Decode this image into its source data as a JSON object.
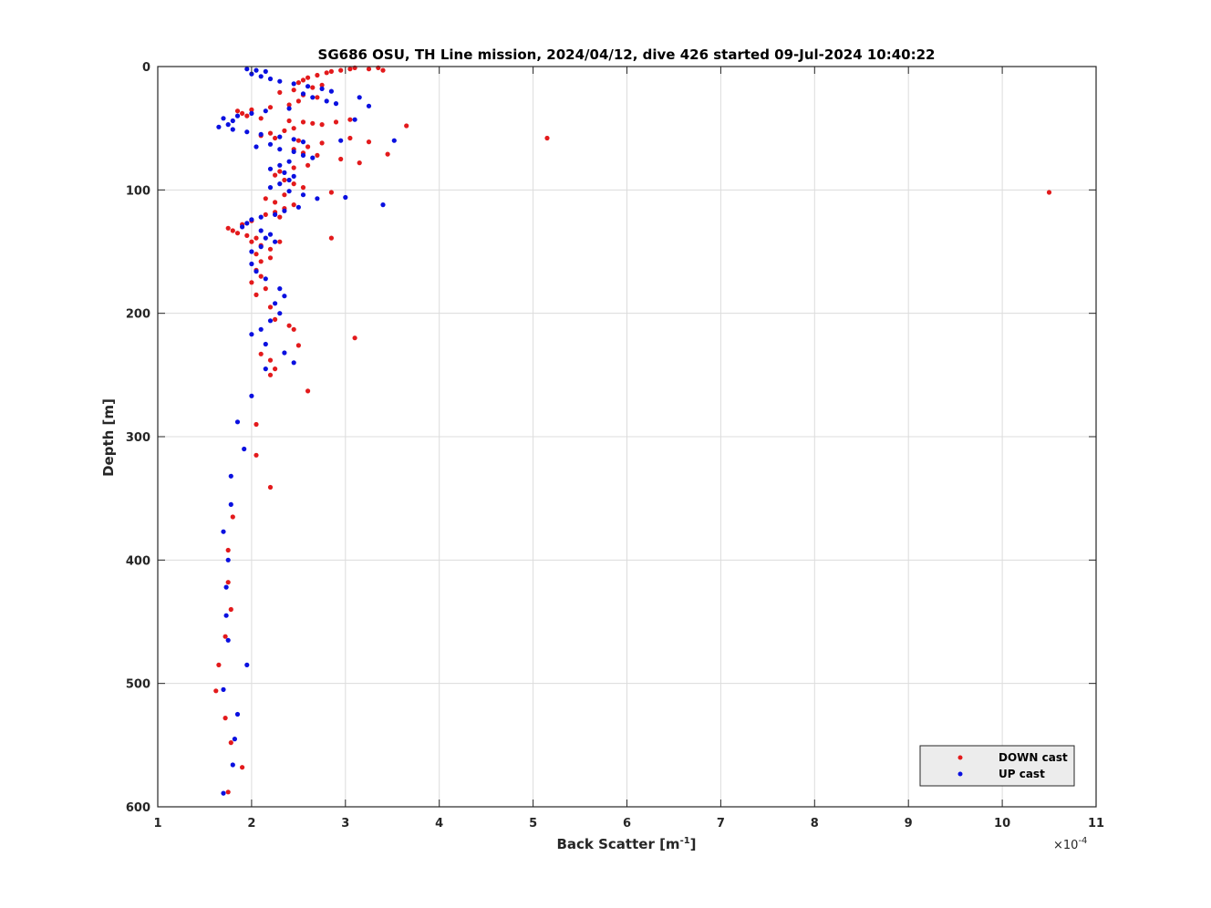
{
  "chart_data": {
    "type": "scatter",
    "title": "SG686 OSU, TH Line mission, 2024/04/12, dive 426 started 09-Jul-2024 10:40:22",
    "xlabel_base": "Back Scatter [m",
    "xlabel_sup": "-1",
    "xlabel_end": "]",
    "ylabel": "Depth [m]",
    "x_exponent_prefix": "×10",
    "x_exponent_sup": "-4",
    "xlim": [
      1,
      11
    ],
    "ylim": [
      0,
      600
    ],
    "y_reversed": true,
    "x_ticks": [
      1,
      2,
      3,
      4,
      5,
      6,
      7,
      8,
      9,
      10,
      11
    ],
    "y_ticks": [
      0,
      100,
      200,
      300,
      400,
      500,
      600
    ],
    "x_tick_labels": [
      "1",
      "2",
      "3",
      "4",
      "5",
      "6",
      "7",
      "8",
      "9",
      "10",
      "11"
    ],
    "y_tick_labels": [
      "0",
      "100",
      "200",
      "300",
      "400",
      "500",
      "600"
    ],
    "grid": true,
    "legend_position": "bottom-right",
    "series": [
      {
        "name": "DOWN cast",
        "color": "#e31a1c",
        "points": [
          [
            3.05,
            2
          ],
          [
            3.1,
            1
          ],
          [
            3.25,
            2
          ],
          [
            3.35,
            1
          ],
          [
            3.4,
            3
          ],
          [
            2.95,
            3
          ],
          [
            2.85,
            4
          ],
          [
            2.8,
            5
          ],
          [
            2.7,
            7
          ],
          [
            2.6,
            9
          ],
          [
            2.55,
            11
          ],
          [
            2.5,
            13
          ],
          [
            2.75,
            15
          ],
          [
            2.65,
            17
          ],
          [
            2.45,
            19
          ],
          [
            2.3,
            21
          ],
          [
            2.55,
            23
          ],
          [
            2.7,
            25
          ],
          [
            2.5,
            28
          ],
          [
            2.4,
            31
          ],
          [
            2.2,
            33
          ],
          [
            2.0,
            35
          ],
          [
            1.85,
            36
          ],
          [
            1.9,
            38
          ],
          [
            1.95,
            40
          ],
          [
            2.1,
            42
          ],
          [
            2.4,
            44
          ],
          [
            2.55,
            45
          ],
          [
            2.65,
            46
          ],
          [
            2.75,
            47
          ],
          [
            2.9,
            45
          ],
          [
            3.05,
            43
          ],
          [
            3.65,
            48
          ],
          [
            2.45,
            50
          ],
          [
            2.35,
            52
          ],
          [
            2.2,
            54
          ],
          [
            2.1,
            56
          ],
          [
            2.25,
            58
          ],
          [
            2.5,
            60
          ],
          [
            2.75,
            62
          ],
          [
            3.05,
            58
          ],
          [
            3.25,
            61
          ],
          [
            2.6,
            65
          ],
          [
            2.45,
            67
          ],
          [
            2.55,
            70
          ],
          [
            2.7,
            72
          ],
          [
            2.95,
            75
          ],
          [
            3.45,
            71
          ],
          [
            3.15,
            78
          ],
          [
            2.6,
            80
          ],
          [
            2.45,
            82
          ],
          [
            2.3,
            85
          ],
          [
            2.25,
            88
          ],
          [
            2.35,
            92
          ],
          [
            2.45,
            95
          ],
          [
            2.55,
            98
          ],
          [
            2.85,
            102
          ],
          [
            2.35,
            104
          ],
          [
            2.15,
            107
          ],
          [
            2.25,
            110
          ],
          [
            2.45,
            112
          ],
          [
            2.35,
            115
          ],
          [
            2.25,
            118
          ],
          [
            2.15,
            120
          ],
          [
            2.3,
            122
          ],
          [
            2.0,
            125
          ],
          [
            1.9,
            128
          ],
          [
            1.75,
            131
          ],
          [
            1.8,
            133
          ],
          [
            1.85,
            135
          ],
          [
            1.95,
            137
          ],
          [
            2.05,
            139
          ],
          [
            2.0,
            142
          ],
          [
            2.1,
            145
          ],
          [
            2.3,
            142
          ],
          [
            2.2,
            148
          ],
          [
            2.05,
            152
          ],
          [
            2.2,
            155
          ],
          [
            2.1,
            158
          ],
          [
            2.05,
            165
          ],
          [
            2.1,
            170
          ],
          [
            2.0,
            175
          ],
          [
            2.15,
            180
          ],
          [
            2.05,
            185
          ],
          [
            2.2,
            195
          ],
          [
            2.25,
            205
          ],
          [
            2.4,
            210
          ],
          [
            2.45,
            213
          ],
          [
            2.5,
            226
          ],
          [
            2.1,
            233
          ],
          [
            2.2,
            238
          ],
          [
            2.25,
            245
          ],
          [
            2.2,
            250
          ],
          [
            2.6,
            263
          ],
          [
            3.1,
            220
          ],
          [
            2.85,
            139
          ],
          [
            5.15,
            58
          ],
          [
            10.5,
            102
          ],
          [
            2.05,
            290
          ],
          [
            2.05,
            315
          ],
          [
            2.2,
            341
          ],
          [
            1.8,
            365
          ],
          [
            1.75,
            392
          ],
          [
            1.75,
            418
          ],
          [
            1.78,
            440
          ],
          [
            1.72,
            462
          ],
          [
            1.65,
            485
          ],
          [
            1.62,
            506
          ],
          [
            1.72,
            528
          ],
          [
            1.78,
            548
          ],
          [
            1.9,
            568
          ],
          [
            1.75,
            588
          ]
        ]
      },
      {
        "name": "UP cast",
        "color": "#0a10e0",
        "points": [
          [
            1.95,
            2
          ],
          [
            2.05,
            3
          ],
          [
            2.15,
            4
          ],
          [
            2.0,
            6
          ],
          [
            2.1,
            8
          ],
          [
            2.2,
            10
          ],
          [
            2.3,
            12
          ],
          [
            2.45,
            14
          ],
          [
            2.6,
            16
          ],
          [
            2.75,
            18
          ],
          [
            2.85,
            20
          ],
          [
            2.55,
            22
          ],
          [
            2.65,
            25
          ],
          [
            2.8,
            28
          ],
          [
            2.9,
            30
          ],
          [
            3.15,
            25
          ],
          [
            3.25,
            32
          ],
          [
            2.4,
            34
          ],
          [
            2.15,
            36
          ],
          [
            2.0,
            38
          ],
          [
            1.85,
            40
          ],
          [
            1.7,
            42
          ],
          [
            1.8,
            44
          ],
          [
            1.75,
            47
          ],
          [
            1.65,
            49
          ],
          [
            1.8,
            51
          ],
          [
            1.95,
            53
          ],
          [
            2.1,
            55
          ],
          [
            2.3,
            57
          ],
          [
            2.45,
            59
          ],
          [
            2.55,
            61
          ],
          [
            2.2,
            63
          ],
          [
            2.05,
            65
          ],
          [
            2.3,
            67
          ],
          [
            2.45,
            69
          ],
          [
            2.55,
            72
          ],
          [
            2.65,
            74
          ],
          [
            2.4,
            77
          ],
          [
            2.3,
            80
          ],
          [
            2.2,
            83
          ],
          [
            2.35,
            86
          ],
          [
            2.45,
            89
          ],
          [
            2.4,
            92
          ],
          [
            2.3,
            95
          ],
          [
            2.2,
            98
          ],
          [
            2.4,
            101
          ],
          [
            2.55,
            104
          ],
          [
            2.7,
            107
          ],
          [
            3.0,
            106
          ],
          [
            3.4,
            112
          ],
          [
            2.5,
            114
          ],
          [
            2.35,
            117
          ],
          [
            2.25,
            120
          ],
          [
            2.1,
            122
          ],
          [
            2.0,
            124
          ],
          [
            1.95,
            127
          ],
          [
            1.9,
            130
          ],
          [
            2.1,
            133
          ],
          [
            2.2,
            136
          ],
          [
            2.15,
            139
          ],
          [
            2.25,
            142
          ],
          [
            2.1,
            146
          ],
          [
            2.0,
            150
          ],
          [
            2.0,
            160
          ],
          [
            2.05,
            166
          ],
          [
            2.15,
            172
          ],
          [
            2.3,
            180
          ],
          [
            2.35,
            186
          ],
          [
            2.25,
            192
          ],
          [
            2.3,
            200
          ],
          [
            2.2,
            206
          ],
          [
            2.1,
            213
          ],
          [
            2.0,
            217
          ],
          [
            2.15,
            225
          ],
          [
            2.35,
            232
          ],
          [
            2.45,
            240
          ],
          [
            2.15,
            245
          ],
          [
            2.0,
            267
          ],
          [
            1.85,
            288
          ],
          [
            1.92,
            310
          ],
          [
            1.78,
            332
          ],
          [
            1.78,
            355
          ],
          [
            1.7,
            377
          ],
          [
            1.75,
            400
          ],
          [
            1.73,
            422
          ],
          [
            1.73,
            445
          ],
          [
            1.75,
            465
          ],
          [
            1.95,
            485
          ],
          [
            1.7,
            505
          ],
          [
            1.85,
            525
          ],
          [
            1.82,
            545
          ],
          [
            1.8,
            566
          ],
          [
            1.7,
            589
          ],
          [
            3.52,
            60
          ],
          [
            3.1,
            43
          ],
          [
            2.95,
            60
          ]
        ]
      }
    ]
  }
}
